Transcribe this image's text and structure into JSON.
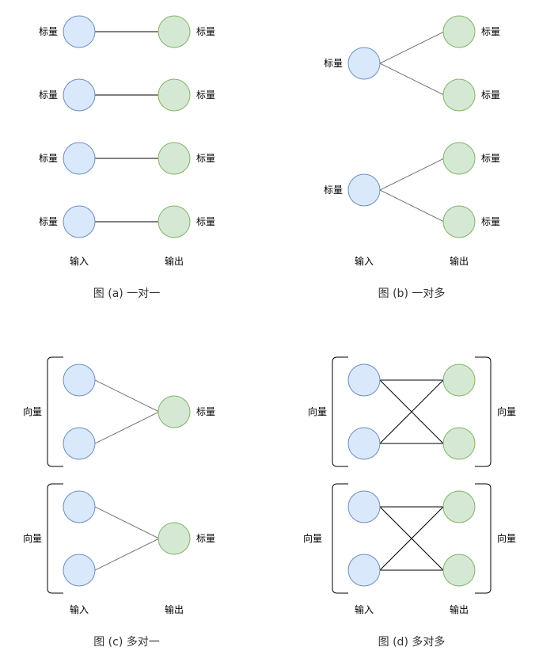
{
  "colors": {
    "input_fill": "#dae8fc",
    "input_stroke": "#6c8ebf",
    "output_fill": "#d5e8d4",
    "output_stroke": "#82b366",
    "edge": "#000000"
  },
  "labels": {
    "scalar": "标量",
    "vector": "向量",
    "input": "输入",
    "output": "输出"
  },
  "diagrams": [
    {
      "id": "a",
      "caption": "图 (a) 一对一"
    },
    {
      "id": "b",
      "caption": "图 (b) 一对多"
    },
    {
      "id": "c",
      "caption": "图 (c) 多对一"
    },
    {
      "id": "d",
      "caption": "图 (d) 多对多"
    }
  ]
}
